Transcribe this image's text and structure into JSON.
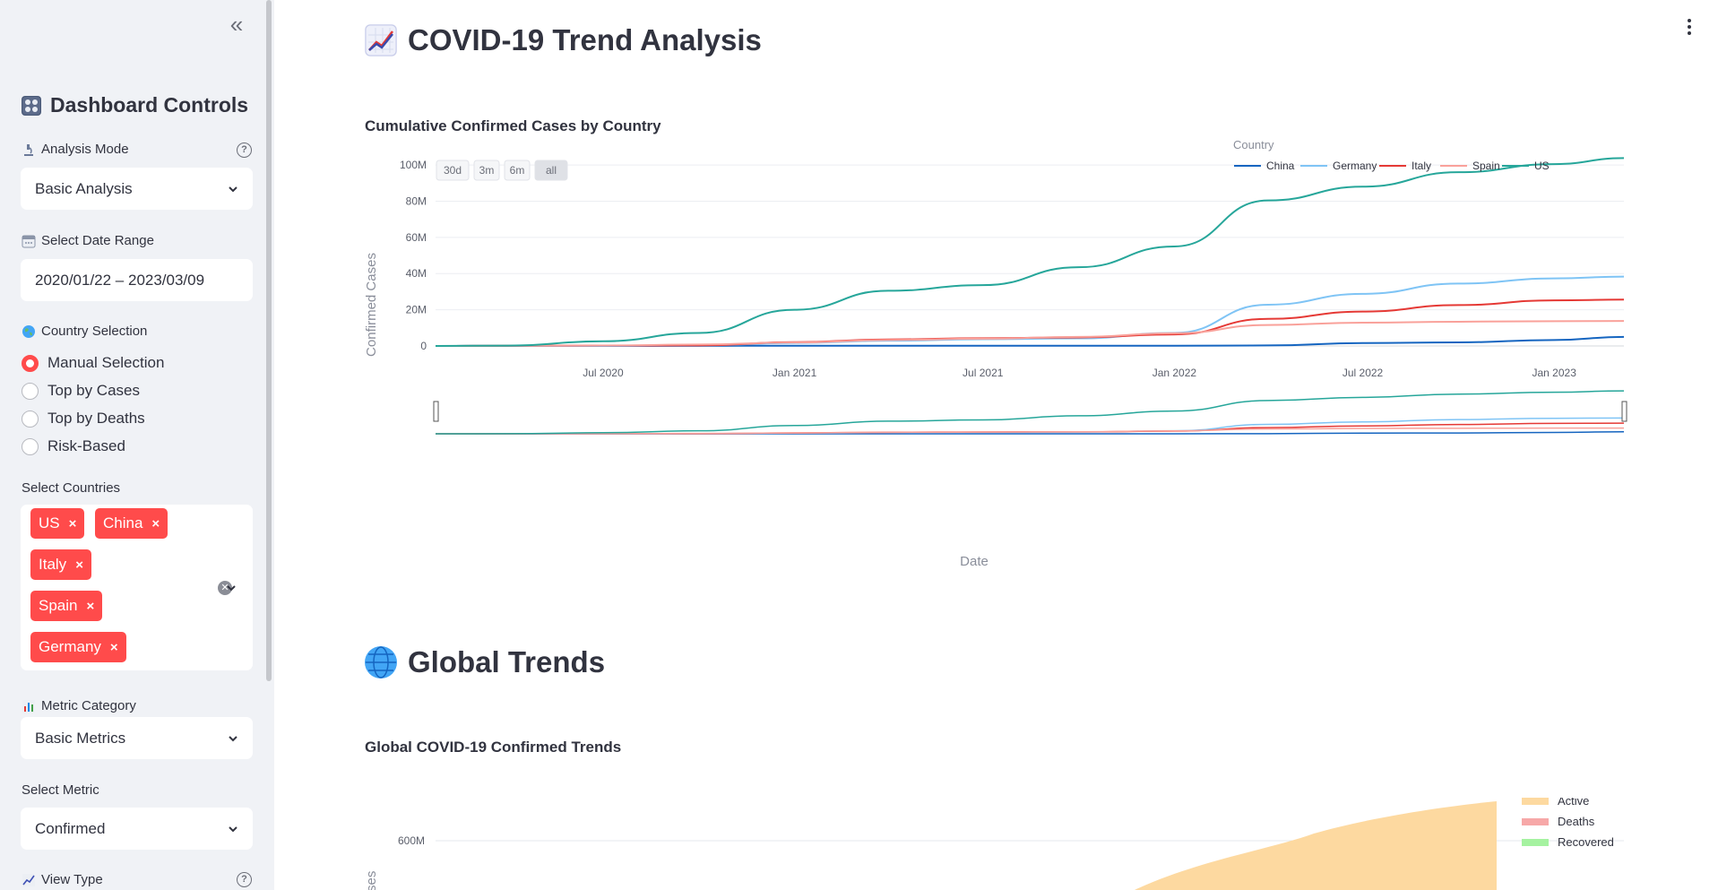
{
  "sidebar": {
    "title": "Dashboard Controls",
    "analysis_mode": {
      "label": "Analysis Mode",
      "value": "Basic Analysis"
    },
    "date_range": {
      "label": "Select Date Range",
      "value": "2020/01/22 – 2023/03/09"
    },
    "country_selection": {
      "label": "Country Selection",
      "options": [
        "Manual Selection",
        "Top by Cases",
        "Top by Deaths",
        "Risk-Based"
      ],
      "selected": "Manual Selection"
    },
    "countries": {
      "label": "Select Countries",
      "tags": [
        "US",
        "China",
        "Italy",
        "Spain",
        "Germany"
      ]
    },
    "metric_category": {
      "label": "Metric Category",
      "value": "Basic Metrics"
    },
    "metric": {
      "label": "Select Metric",
      "value": "Confirmed"
    },
    "view_type": {
      "label": "View Type"
    }
  },
  "main": {
    "page_title": "COVID-19 Trend Analysis",
    "section2_title": "Global Trends"
  },
  "chart1": {
    "title": "Cumulative Confirmed Cases by Country",
    "legend_title": "Country",
    "range_buttons": [
      "30d",
      "3m",
      "6m",
      "all"
    ],
    "active_range": "all",
    "ylabel": "Confirmed Cases",
    "xlabel": "Date",
    "y_ticks": [
      "0",
      "20M",
      "40M",
      "60M",
      "80M",
      "100M"
    ],
    "x_ticks": [
      "Jul 2020",
      "Jan 2021",
      "Jul 2021",
      "Jan 2022",
      "Jul 2022",
      "Jan 2023"
    ]
  },
  "chart2": {
    "title": "Global COVID-19 Confirmed Trends",
    "ylabel_partial": "ses",
    "y_tick": "600M",
    "legend": [
      "Active",
      "Deaths",
      "Recovered"
    ]
  },
  "colors": {
    "accent": "#ff4b4b",
    "china": "#1565c0",
    "germany": "#7fc4f5",
    "italy": "#e53935",
    "spain": "#f9a19a",
    "us": "#26a69a",
    "active": "#fdd9a0",
    "deaths": "#f7a8a8",
    "recovered": "#a5f2a0"
  },
  "chart_data": [
    {
      "type": "line",
      "title": "Cumulative Confirmed Cases by Country",
      "xlabel": "Date",
      "ylabel": "Confirmed Cases",
      "xlim": [
        "2020-01-22",
        "2023-03-09"
      ],
      "ylim": [
        0,
        104000000
      ],
      "grid": true,
      "legend_position": "top-right",
      "x": [
        "2020-01-22",
        "2020-04-01",
        "2020-07-01",
        "2020-10-01",
        "2021-01-01",
        "2021-04-01",
        "2021-07-01",
        "2021-10-01",
        "2022-01-01",
        "2022-04-01",
        "2022-07-01",
        "2022-10-01",
        "2023-01-01",
        "2023-03-09"
      ],
      "series": [
        {
          "name": "China",
          "values": [
            0.0005,
            0.08,
            0.09,
            0.09,
            0.1,
            0.1,
            0.1,
            0.11,
            0.12,
            0.3,
            1.6,
            2.0,
            3.3,
            5.0
          ]
        },
        {
          "name": "Germany",
          "values": [
            0,
            0.1,
            0.2,
            0.3,
            1.7,
            2.9,
            3.7,
            4.2,
            7.2,
            22.8,
            28.8,
            34.5,
            37.3,
            38.3
          ]
        },
        {
          "name": "Italy",
          "values": [
            0,
            0.1,
            0.24,
            0.3,
            2.1,
            3.6,
            4.3,
            4.7,
            6.4,
            15.0,
            19.0,
            22.6,
            25.2,
            25.6
          ]
        },
        {
          "name": "Spain",
          "values": [
            0,
            0.1,
            0.25,
            0.8,
            1.9,
            3.3,
            4.0,
            5.0,
            7.0,
            11.6,
            12.9,
            13.4,
            13.7,
            13.8
          ]
        },
        {
          "name": "US",
          "values": [
            0,
            0.2,
            2.6,
            7.2,
            20.0,
            30.5,
            33.6,
            43.5,
            55.0,
            80.4,
            88.0,
            96.0,
            100.5,
            103.8
          ]
        }
      ]
    },
    {
      "type": "area",
      "title": "Global COVID-19 Confirmed Trends",
      "legend_position": "top-right",
      "series": [
        {
          "name": "Active"
        },
        {
          "name": "Deaths"
        },
        {
          "name": "Recovered"
        }
      ]
    }
  ]
}
